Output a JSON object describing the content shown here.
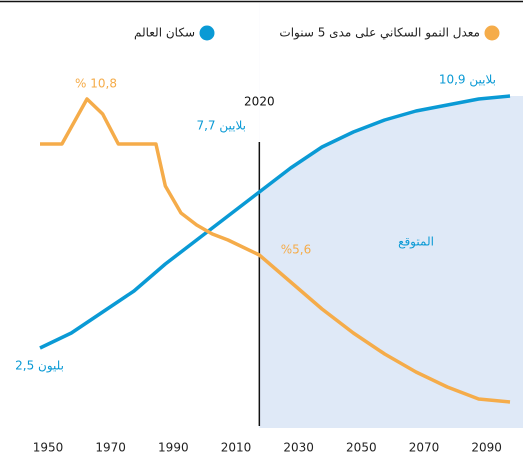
{
  "chart_data": {
    "type": "line",
    "legend_labels": [
      "معدل النمو السكاني على مدى 5 سنوات",
      "سكان العالم"
    ],
    "series": [
      {
        "name": "سكان العالم",
        "color": "#0a9ad5",
        "x": [
          1950,
          1960,
          1970,
          1980,
          1990,
          2000,
          2010,
          2020,
          2030,
          2040,
          2050,
          2060,
          2070,
          2080,
          2090,
          2100
        ],
        "values": [
          2.5,
          3.0,
          3.7,
          4.4,
          5.3,
          6.1,
          6.9,
          7.7,
          8.5,
          9.2,
          9.7,
          10.1,
          10.4,
          10.6,
          10.8,
          10.9
        ]
      },
      {
        "name": "معدل النمو السكاني على مدى 5 سنوات",
        "color": "#f5ac4a",
        "axis": "y2",
        "x": [
          1950,
          1957,
          1965,
          1970,
          1975,
          1987,
          1990,
          1995,
          2000,
          2005,
          2010,
          2020,
          2030,
          2040,
          2050,
          2060,
          2070,
          2080,
          2090,
          2100
        ],
        "values": [
          9.3,
          9.3,
          10.8,
          10.3,
          9.3,
          9.3,
          7.9,
          7.0,
          6.6,
          6.3,
          6.1,
          5.6,
          4.7,
          3.8,
          3.0,
          2.3,
          1.7,
          1.2,
          0.8,
          0.7
        ]
      }
    ],
    "forecast_start": 2020,
    "forecast_label": "المتوقع",
    "annotations": [
      "% 10,8",
      "7,7 بلايين",
      "10,9 بلايين",
      "%5,6",
      "2,5 بليون"
    ],
    "xlim": [
      1950,
      2100
    ],
    "xticks": [
      1950,
      1970,
      1990,
      2010,
      2030,
      2050,
      2070,
      2090
    ],
    "ylim": [
      0,
      12
    ],
    "y2lim": [
      0,
      12
    ]
  }
}
